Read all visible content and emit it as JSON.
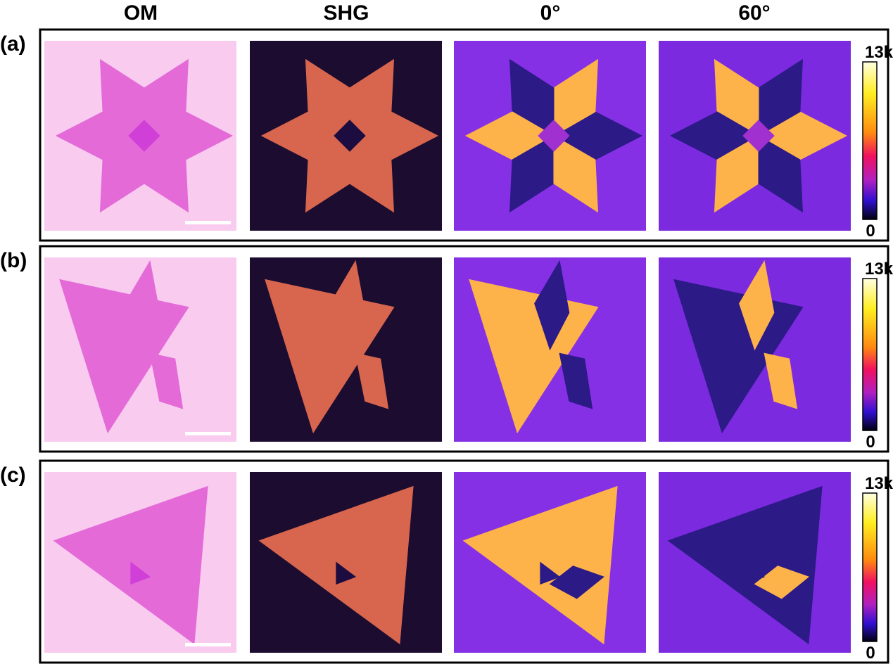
{
  "columns": [
    "OM",
    "SHG",
    "0°",
    "60°"
  ],
  "rows": [
    {
      "label": "(a)",
      "colorbar": {
        "max": "13k",
        "min": "0"
      }
    },
    {
      "label": "(b)",
      "colorbar": {
        "max": "13k",
        "min": "0"
      }
    },
    {
      "label": "(c)",
      "colorbar": {
        "max": "13k",
        "min": "0"
      }
    }
  ]
}
